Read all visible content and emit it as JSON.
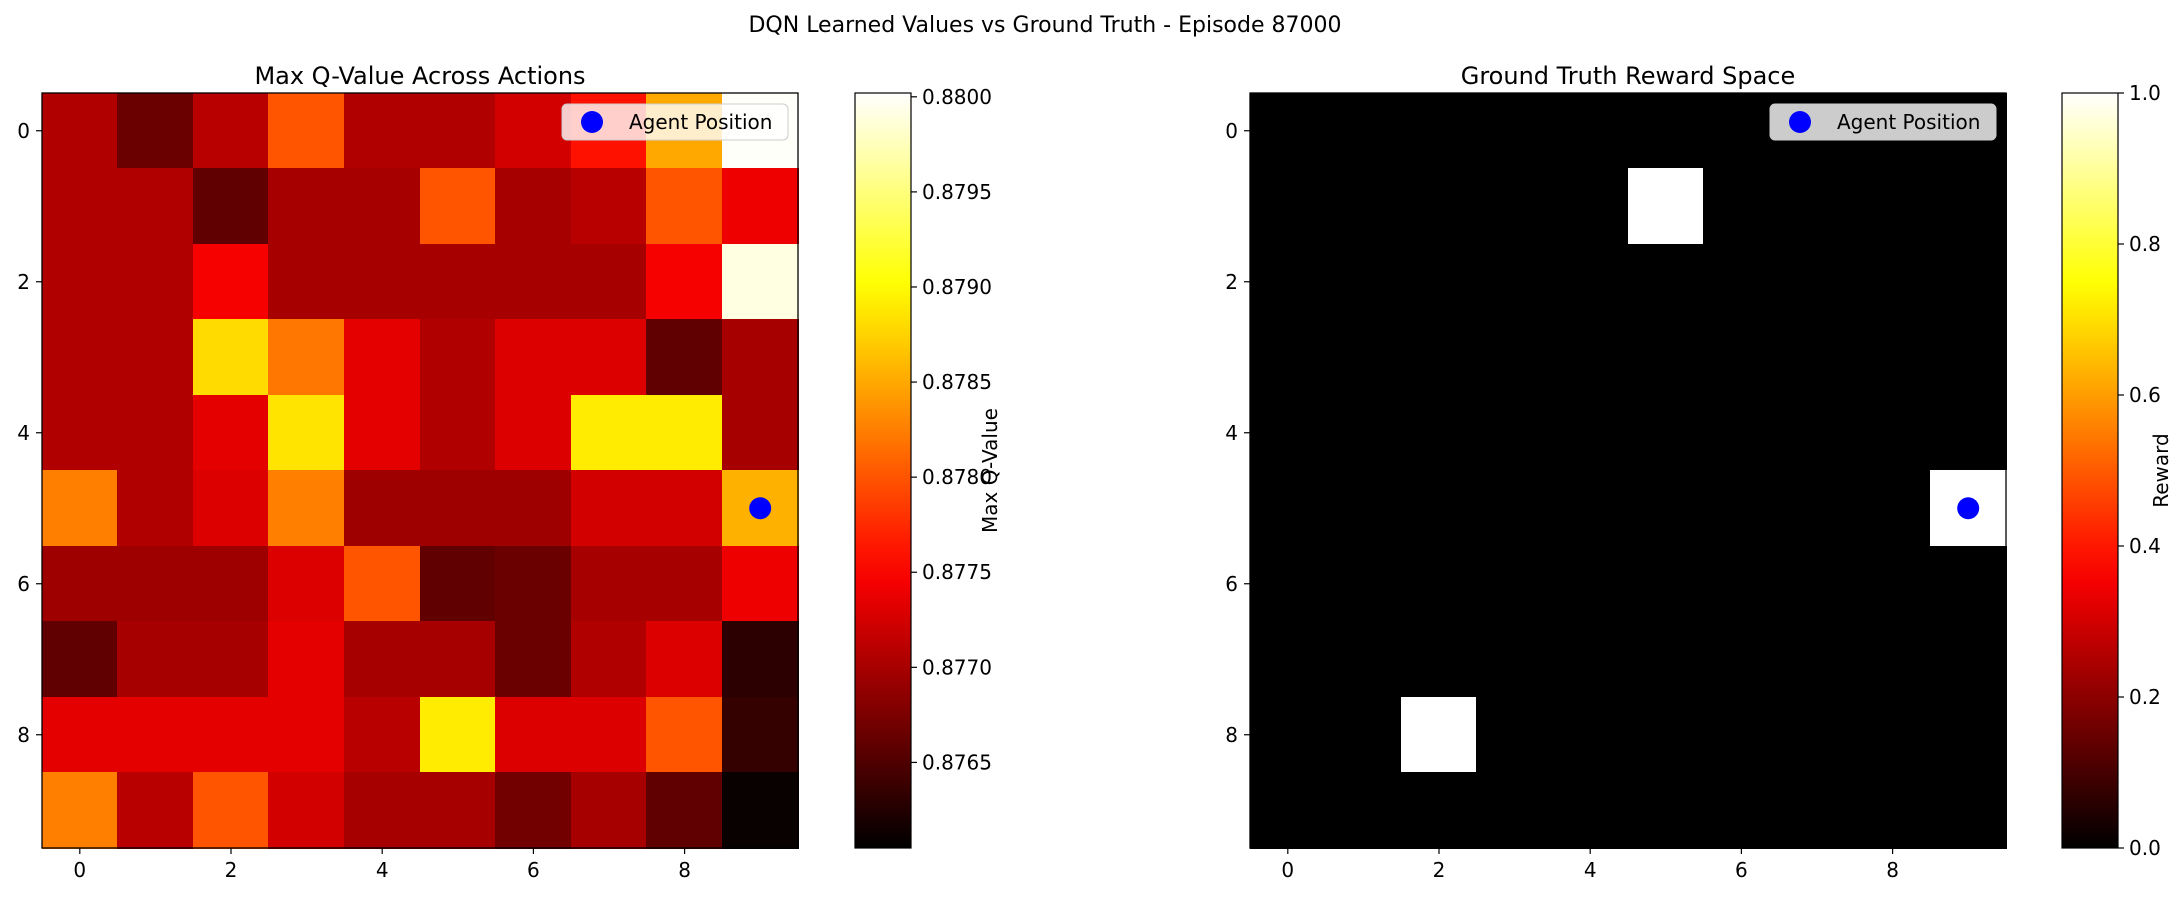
{
  "figure": {
    "suptitle": "DQN Learned Values vs Ground Truth - Episode 87000"
  },
  "chart_data": [
    {
      "type": "heatmap",
      "title": "Max Q-Value Across Actions",
      "xlabel": "",
      "ylabel": "",
      "colormap": "hot",
      "colorbar_label": "Max Q-Value",
      "vmin": 0.87605,
      "vmax": 0.88002,
      "colorbar_ticks": [
        "0.8765",
        "0.8770",
        "0.8775",
        "0.8780",
        "0.8785",
        "0.8790",
        "0.8795",
        "0.8800"
      ],
      "x_ticks": [
        "0",
        "2",
        "4",
        "6",
        "8"
      ],
      "y_ticks": [
        "0",
        "2",
        "4",
        "6",
        "8"
      ],
      "grid": false,
      "legend": {
        "label": "Agent Position",
        "placement": "top-right",
        "color": "#0000ff"
      },
      "agent_position": {
        "row": 5,
        "col": 9
      },
      "values": [
        [
          0.87705,
          0.87665,
          0.8771,
          0.878,
          0.87705,
          0.87705,
          0.87725,
          0.8776,
          0.8785,
          0.88
        ],
        [
          0.87705,
          0.87705,
          0.8766,
          0.877,
          0.877,
          0.878,
          0.877,
          0.8771,
          0.878,
          0.8774
        ],
        [
          0.87705,
          0.87705,
          0.87745,
          0.877,
          0.877,
          0.877,
          0.877,
          0.877,
          0.87745,
          0.8799
        ],
        [
          0.87705,
          0.87705,
          0.8788,
          0.8782,
          0.87735,
          0.87705,
          0.8773,
          0.8773,
          0.8766,
          0.877
        ],
        [
          0.87705,
          0.87705,
          0.87735,
          0.87885,
          0.87735,
          0.87705,
          0.8773,
          0.8789,
          0.8789,
          0.877
        ],
        [
          0.87825,
          0.87705,
          0.8773,
          0.87825,
          0.87695,
          0.87695,
          0.87695,
          0.87725,
          0.87725,
          0.87855
        ],
        [
          0.87695,
          0.87695,
          0.87695,
          0.8773,
          0.878,
          0.8766,
          0.87665,
          0.877,
          0.877,
          0.8774
        ],
        [
          0.8766,
          0.877,
          0.877,
          0.87735,
          0.877,
          0.877,
          0.87665,
          0.87705,
          0.8773,
          0.8763
        ],
        [
          0.87735,
          0.87735,
          0.87735,
          0.87735,
          0.8771,
          0.8789,
          0.8773,
          0.8773,
          0.878,
          0.87635
        ],
        [
          0.87825,
          0.8771,
          0.878,
          0.87725,
          0.877,
          0.877,
          0.8767,
          0.877,
          0.8766,
          0.8761
        ]
      ]
    },
    {
      "type": "heatmap",
      "title": "Ground Truth Reward Space",
      "xlabel": "",
      "ylabel": "",
      "colormap": "hot",
      "colorbar_label": "Reward",
      "vmin": 0.0,
      "vmax": 1.0,
      "colorbar_ticks": [
        "0.0",
        "0.2",
        "0.4",
        "0.6",
        "0.8",
        "1.0"
      ],
      "x_ticks": [
        "0",
        "2",
        "4",
        "6",
        "8"
      ],
      "y_ticks": [
        "0",
        "2",
        "4",
        "6",
        "8"
      ],
      "grid": false,
      "legend": {
        "label": "Agent Position",
        "placement": "top-right",
        "color": "#0000ff"
      },
      "agent_position": {
        "row": 5,
        "col": 9
      },
      "values": [
        [
          0,
          0,
          0,
          0,
          0,
          0,
          0,
          0,
          0,
          0
        ],
        [
          0,
          0,
          0,
          0,
          0,
          1,
          0,
          0,
          0,
          0
        ],
        [
          0,
          0,
          0,
          0,
          0,
          0,
          0,
          0,
          0,
          0
        ],
        [
          0,
          0,
          0,
          0,
          0,
          0,
          0,
          0,
          0,
          0
        ],
        [
          0,
          0,
          0,
          0,
          0,
          0,
          0,
          0,
          0,
          0
        ],
        [
          0,
          0,
          0,
          0,
          0,
          0,
          0,
          0,
          0,
          1
        ],
        [
          0,
          0,
          0,
          0,
          0,
          0,
          0,
          0,
          0,
          0
        ],
        [
          0,
          0,
          0,
          0,
          0,
          0,
          0,
          0,
          0,
          0
        ],
        [
          0,
          0,
          1,
          0,
          0,
          0,
          0,
          0,
          0,
          0
        ],
        [
          0,
          0,
          0,
          0,
          0,
          0,
          0,
          0,
          0,
          0
        ]
      ]
    }
  ]
}
